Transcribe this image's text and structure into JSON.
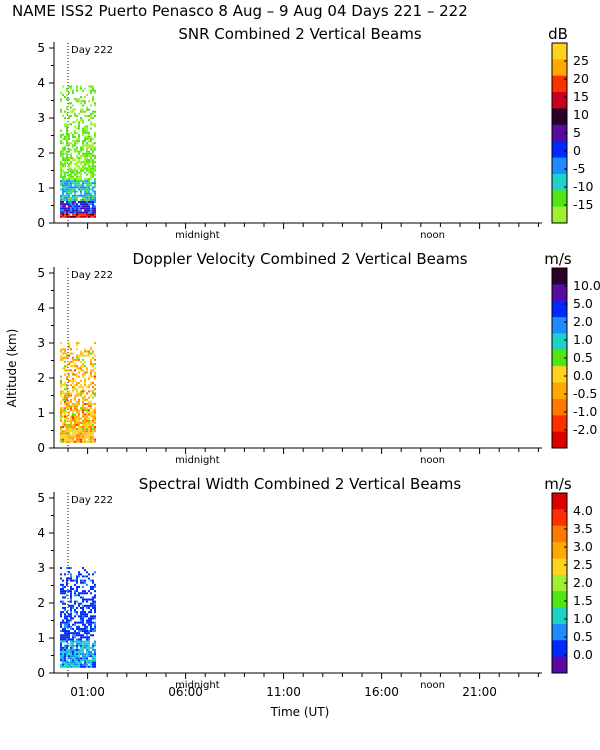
{
  "header": "NAME ISS2 Puerto Penasco    8 Aug –  9 Aug 04 Days 221 – 222",
  "chart_data": [
    {
      "type": "heatmap",
      "title": "SNR Combined 2 Vertical Beams",
      "unit": "dB",
      "ylabel": "",
      "xlabel": "",
      "ylim": [
        0,
        5
      ],
      "y_ticks": [
        "0",
        "1",
        "2",
        "3",
        "4",
        "5"
      ],
      "x_markers": [
        "midnight",
        "noon"
      ],
      "day_label": "Day 222",
      "colorbar": {
        "labels": [
          "25",
          "20",
          "15",
          "10",
          "5",
          "0",
          "-5",
          "-10",
          "-15"
        ],
        "colors": [
          "#ffd21e",
          "#ffa800",
          "#ff3000",
          "#c8001e",
          "#280028",
          "#5a0aa0",
          "#0028ff",
          "#1e8cff",
          "#1ed2c8",
          "#50e614",
          "#a0f032"
        ]
      },
      "data_extent": {
        "time_start_UT": "00:00",
        "time_end_UT": "01:20",
        "altitude_max_km": 3.9
      },
      "grid": false
    },
    {
      "type": "heatmap",
      "title": "Doppler Velocity Combined 2 Vertical Beams",
      "unit": "m/s",
      "ylabel": "Altitude (km)",
      "xlabel": "",
      "ylim": [
        0,
        5
      ],
      "y_ticks": [
        "0",
        "1",
        "2",
        "3",
        "4",
        "5"
      ],
      "x_markers": [
        "midnight",
        "noon"
      ],
      "day_label": "Day 222",
      "colorbar": {
        "labels": [
          "10.0",
          "5.0",
          "2.0",
          "1.0",
          "0.5",
          "0.0",
          "-0.5",
          "-1.0",
          "-2.0"
        ],
        "colors": [
          "#280028",
          "#5a0aa0",
          "#0028ff",
          "#1e8cff",
          "#1ed2c8",
          "#50e614",
          "#ffd21e",
          "#ffa800",
          "#ff7800",
          "#ff3000",
          "#dc0000"
        ]
      },
      "data_extent": {
        "time_start_UT": "00:00",
        "time_end_UT": "01:20",
        "altitude_max_km": 3.0
      },
      "grid": false
    },
    {
      "type": "heatmap",
      "title": "Spectral Width Combined 2 Vertical Beams",
      "unit": "m/s",
      "ylabel": "",
      "xlabel": "Time (UT)",
      "ylim": [
        0,
        5
      ],
      "y_ticks": [
        "0",
        "1",
        "2",
        "3",
        "4",
        "5"
      ],
      "x_ticks": [
        "01:00",
        "06:00",
        "11:00",
        "16:00",
        "21:00"
      ],
      "x_markers": [
        "midnight",
        "noon"
      ],
      "day_label": "Day 222",
      "colorbar": {
        "labels": [
          "4.0",
          "3.5",
          "3.0",
          "2.5",
          "2.0",
          "1.5",
          "1.0",
          "0.5",
          "0.0"
        ],
        "colors": [
          "#dc0000",
          "#ff3000",
          "#ff7800",
          "#ffa800",
          "#ffd21e",
          "#a0f032",
          "#50e614",
          "#1ed2c8",
          "#1e8cff",
          "#0028ff",
          "#5a0aa0"
        ]
      },
      "data_extent": {
        "time_start_UT": "00:00",
        "time_end_UT": "01:20",
        "altitude_max_km": 3.0
      },
      "grid": false
    }
  ]
}
